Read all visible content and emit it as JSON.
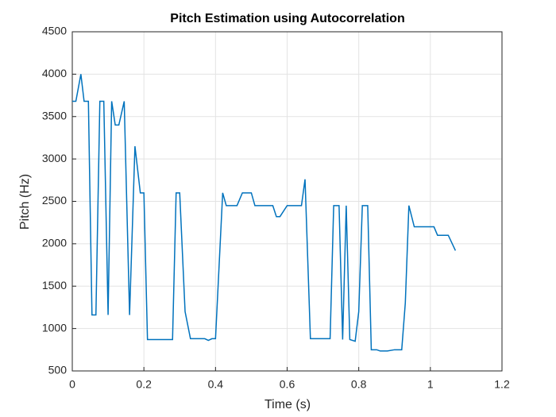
{
  "chart_data": {
    "type": "line",
    "title": "Pitch Estimation using Autocorrelation",
    "x_label": "Time (s)",
    "y_label": "Pitch (Hz)",
    "xlim": [
      0,
      1.2
    ],
    "xticks": [
      0,
      0.2,
      0.4,
      0.6,
      0.8,
      1,
      1.2
    ],
    "ylim": [
      500,
      4500
    ],
    "yticks": [
      500,
      1000,
      1500,
      2000,
      2500,
      3000,
      3500,
      4000,
      4500
    ],
    "grid": true,
    "series": [
      {
        "color": "#0072bd",
        "x": [
          0,
          0.01,
          0.024,
          0.033,
          0.045,
          0.055,
          0.066,
          0.077,
          0.088,
          0.1,
          0.11,
          0.12,
          0.13,
          0.145,
          0.16,
          0.175,
          0.19,
          0.2,
          0.21,
          0.28,
          0.29,
          0.3,
          0.315,
          0.33,
          0.37,
          0.38,
          0.39,
          0.4,
          0.42,
          0.43,
          0.46,
          0.475,
          0.5,
          0.51,
          0.56,
          0.57,
          0.58,
          0.6,
          0.64,
          0.65,
          0.665,
          0.72,
          0.73,
          0.745,
          0.755,
          0.765,
          0.775,
          0.79,
          0.8,
          0.81,
          0.825,
          0.835,
          0.85,
          0.86,
          0.88,
          0.9,
          0.92,
          0.93,
          0.94,
          0.955,
          1.0,
          1.01,
          1.02,
          1.05,
          1.07
        ],
        "values": [
          3680,
          3680,
          4000,
          3680,
          3680,
          1160,
          1160,
          3680,
          3680,
          1160,
          3680,
          3400,
          3400,
          3680,
          1160,
          3150,
          2600,
          2600,
          870,
          870,
          2600,
          2600,
          1200,
          880,
          880,
          860,
          880,
          880,
          2600,
          2450,
          2450,
          2600,
          2600,
          2450,
          2450,
          2320,
          2320,
          2450,
          2450,
          2760,
          880,
          880,
          2450,
          2450,
          870,
          2450,
          870,
          850,
          1200,
          2450,
          2450,
          750,
          750,
          735,
          735,
          750,
          750,
          1300,
          2450,
          2200,
          2200,
          2200,
          2100,
          2100,
          1920
        ]
      }
    ]
  }
}
